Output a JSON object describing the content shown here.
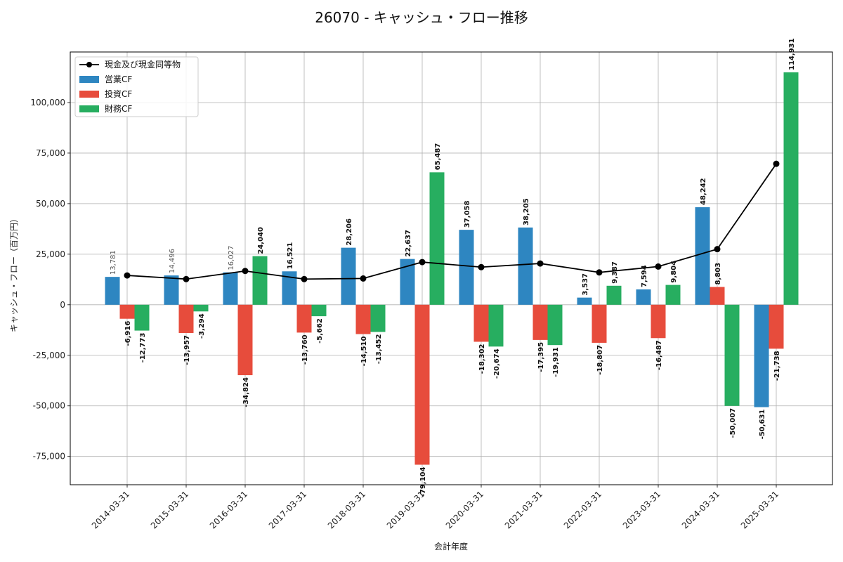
{
  "chart_data": {
    "type": "bar",
    "title": "26070 - キャッシュ・フロー推移",
    "xlabel": "会計年度",
    "ylabel": "キャッシュ・フロー（百万円）",
    "ylim": [
      -89000,
      125000
    ],
    "yticks": [
      -75000,
      -50000,
      -25000,
      0,
      25000,
      50000,
      75000,
      100000
    ],
    "ytick_labels": [
      "-75,000",
      "-50,000",
      "-25,000",
      "0",
      "25,000",
      "50,000",
      "75,000",
      "100,000"
    ],
    "grid": true,
    "legend_position": "top-left",
    "categories": [
      "2014-03-31",
      "2015-03-31",
      "2016-03-31",
      "2017-03-31",
      "2018-03-31",
      "2019-03-31",
      "2020-03-31",
      "2021-03-31",
      "2022-03-31",
      "2023-03-31",
      "2024-03-31",
      "2025-03-31"
    ],
    "series": [
      {
        "name": "営業CF",
        "kind": "bar",
        "color": "#2e86c1",
        "values": [
          13781,
          14496,
          16027,
          16521,
          28206,
          22637,
          37058,
          38205,
          3537,
          7594,
          48242,
          -50631
        ],
        "labels": [
          "13,781",
          "14,496",
          "16,027",
          "16,521",
          "28,206",
          "22,637",
          "37,058",
          "38,205",
          "3,537",
          "7,594",
          "48,242",
          "-50,631"
        ]
      },
      {
        "name": "投資CF",
        "kind": "bar",
        "color": "#e74c3c",
        "values": [
          -6916,
          -13957,
          -34824,
          -13760,
          -14510,
          -79104,
          -18302,
          -17395,
          -18807,
          -16487,
          8803,
          -21738
        ],
        "labels": [
          "-6,916",
          "-13,957",
          "-34,824",
          "-13,760",
          "-14,510",
          "-79,104",
          "-18,302",
          "-17,395",
          "-18,807",
          "-16,487",
          "8,803",
          "-21,738"
        ]
      },
      {
        "name": "財務CF",
        "kind": "bar",
        "color": "#27ae60",
        "values": [
          -12773,
          -3294,
          24040,
          -5662,
          -13452,
          65487,
          -20674,
          -19931,
          9387,
          9804,
          -50007,
          114931
        ],
        "labels": [
          "-12,773",
          "-3,294",
          "24,040",
          "-5,662",
          "-13,452",
          "65,487",
          "-20,674",
          "-19,931",
          "9,387",
          "9,804",
          "-50,007",
          "114,931"
        ]
      },
      {
        "name": "現金及び現金同等物",
        "kind": "line",
        "color": "#000000",
        "values": [
          14500,
          12700,
          16700,
          12700,
          13000,
          21100,
          18600,
          20400,
          16000,
          18900,
          27500,
          69700
        ]
      }
    ]
  }
}
